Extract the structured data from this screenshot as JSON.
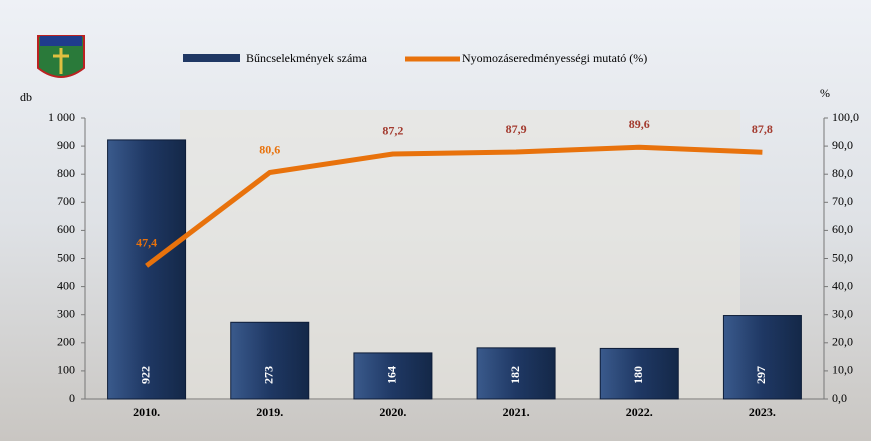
{
  "chart_data": {
    "type": "bar-line",
    "categories": [
      "2010.",
      "2019.",
      "2020.",
      "2021.",
      "2022.",
      "2023."
    ],
    "series": [
      {
        "name": "Bűncselekmények száma",
        "type": "bar",
        "color": "#1f3864",
        "values": [
          922,
          273,
          164,
          182,
          180,
          297
        ]
      },
      {
        "name": "Nyomozáseredményességi mutató (%)",
        "type": "line",
        "axis": "y2",
        "color": "#e8720c",
        "values": [
          47.4,
          80.6,
          87.2,
          87.9,
          89.6,
          87.8
        ],
        "value_labels": [
          "47,4",
          "80,6",
          "87,2",
          "87,9",
          "89,6",
          "87,8"
        ],
        "value_label_colors": [
          "#e8720c",
          "#e8720c",
          "#a33a2e",
          "#a33a2e",
          "#a33a2e",
          "#a33a2e"
        ]
      }
    ],
    "ylabel": "db",
    "y2label": "%",
    "ylim": [
      0,
      1000
    ],
    "yticks": [
      0,
      100,
      200,
      300,
      400,
      500,
      600,
      700,
      800,
      900,
      {
        "value": 1000,
        "label": "1 000"
      }
    ],
    "y2lim": [
      0,
      100
    ],
    "y2ticks": [
      {
        "value": 0,
        "label": "0,0"
      },
      {
        "value": 10,
        "label": "10,0"
      },
      {
        "value": 20,
        "label": "20,0"
      },
      {
        "value": 30,
        "label": "30,0"
      },
      {
        "value": 40,
        "label": "40,0"
      },
      {
        "value": 50,
        "label": "50,0"
      },
      {
        "value": 60,
        "label": "60,0"
      },
      {
        "value": 70,
        "label": "70,0"
      },
      {
        "value": 80,
        "label": "80,0"
      },
      {
        "value": 90,
        "label": "90,0"
      },
      {
        "value": 100,
        "label": "100,0"
      }
    ],
    "grid": false
  }
}
